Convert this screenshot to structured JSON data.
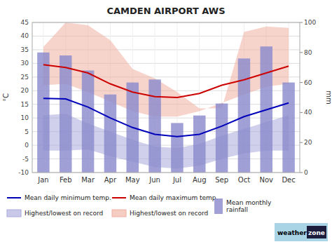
{
  "chart_data": {
    "type": "combo",
    "title": "CAMDEN AIRPORT AWS",
    "categories": [
      "Jan",
      "Feb",
      "Mar",
      "Apr",
      "May",
      "Jun",
      "Jul",
      "Aug",
      "Sep",
      "Oct",
      "Nov",
      "Dec"
    ],
    "ylabel": "°C",
    "y2label": "mm",
    "ylim": [
      -10,
      45
    ],
    "yticks": [
      -10,
      -5,
      0,
      5,
      10,
      15,
      20,
      25,
      30,
      35,
      40,
      45
    ],
    "y2lim": [
      0,
      100
    ],
    "y2ticks": [
      0,
      20,
      40,
      60,
      80,
      100
    ],
    "grid": true,
    "series": [
      {
        "name": "Mean monthly\nrainfall",
        "type": "bar",
        "axis": "y2",
        "color": "#8888cc",
        "values": [
          80.0,
          78.0,
          68.0,
          52.0,
          60.0,
          62.0,
          33.0,
          38.0,
          46.0,
          76.0,
          84.0,
          60.0
        ]
      },
      {
        "name": "Highest/lowest on record",
        "type": "band",
        "color": "#aaaadd",
        "lower": [
          -2.0,
          -2.0,
          -1.5,
          -4.0,
          -6.0,
          -8.0,
          -8.5,
          -7.5,
          -5.0,
          -3.0,
          -2.0,
          -2.0
        ],
        "values": [
          11.0,
          11.5,
          8.0,
          5.0,
          2.0,
          -0.5,
          -1.0,
          0.5,
          3.5,
          6.0,
          8.5,
          11.0
        ]
      },
      {
        "name": "Highest/lowest on record",
        "type": "band",
        "color": "#f0b0a0",
        "lower": [
          22.0,
          22.5,
          19.5,
          16.0,
          12.5,
          10.5,
          10.5,
          12.5,
          15.5,
          18.5,
          21.5,
          22.5
        ],
        "values": [
          36.0,
          45.0,
          44.0,
          38.5,
          28.0,
          24.5,
          19.5,
          13.5,
          13.5,
          41.5,
          43.5,
          43.0
        ]
      },
      {
        "name": "Mean daily minimum temp.",
        "type": "line",
        "color": "#0000bb",
        "values": [
          17.2,
          17.0,
          14.0,
          10.0,
          6.5,
          4.0,
          3.2,
          4.0,
          7.0,
          10.5,
          13.0,
          15.5
        ]
      },
      {
        "name": "Mean daily maximum temp.",
        "type": "line",
        "color": "#cc0000",
        "values": [
          29.5,
          28.5,
          26.5,
          22.5,
          19.5,
          17.8,
          17.5,
          19.0,
          22.0,
          24.0,
          26.5,
          29.0
        ]
      }
    ],
    "annotations": [
      "weather",
      "zone"
    ]
  }
}
